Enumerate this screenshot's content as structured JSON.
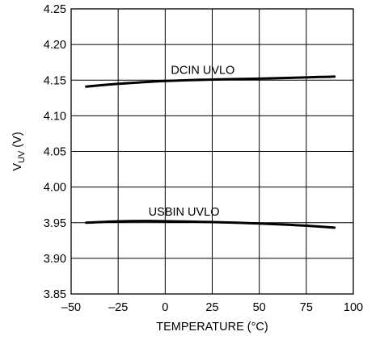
{
  "chart_data": {
    "type": "line",
    "title": "",
    "xlabel": "TEMPERATURE (°C)",
    "ylabel": {
      "main": "V",
      "sub": "UV",
      "unit": " (V)"
    },
    "xlim": [
      -50,
      100
    ],
    "ylim": [
      3.85,
      4.25
    ],
    "grid": true,
    "legend": "none",
    "x_ticks": [
      -50,
      -25,
      0,
      25,
      50,
      75,
      100
    ],
    "x_tick_labels": [
      "–50",
      "–25",
      "0",
      "25",
      "50",
      "75",
      "100"
    ],
    "y_ticks": [
      3.85,
      3.9,
      3.95,
      4.0,
      4.05,
      4.1,
      4.15,
      4.2,
      4.25
    ],
    "y_tick_labels": [
      "3.85",
      "3.90",
      "3.95",
      "4.00",
      "4.05",
      "4.10",
      "4.15",
      "4.20",
      "4.25"
    ],
    "series": [
      {
        "name": "DCIN UVLO",
        "color": "#000000",
        "x": [
          -42,
          -25,
          0,
          25,
          50,
          75,
          90
        ],
        "y": [
          4.141,
          4.145,
          4.149,
          4.151,
          4.152,
          4.154,
          4.155
        ]
      },
      {
        "name": "USBIN UVLO",
        "color": "#000000",
        "x": [
          -42,
          -25,
          -10,
          0,
          25,
          50,
          75,
          90
        ],
        "y": [
          3.95,
          3.952,
          3.9525,
          3.952,
          3.951,
          3.949,
          3.946,
          3.943
        ]
      }
    ]
  }
}
